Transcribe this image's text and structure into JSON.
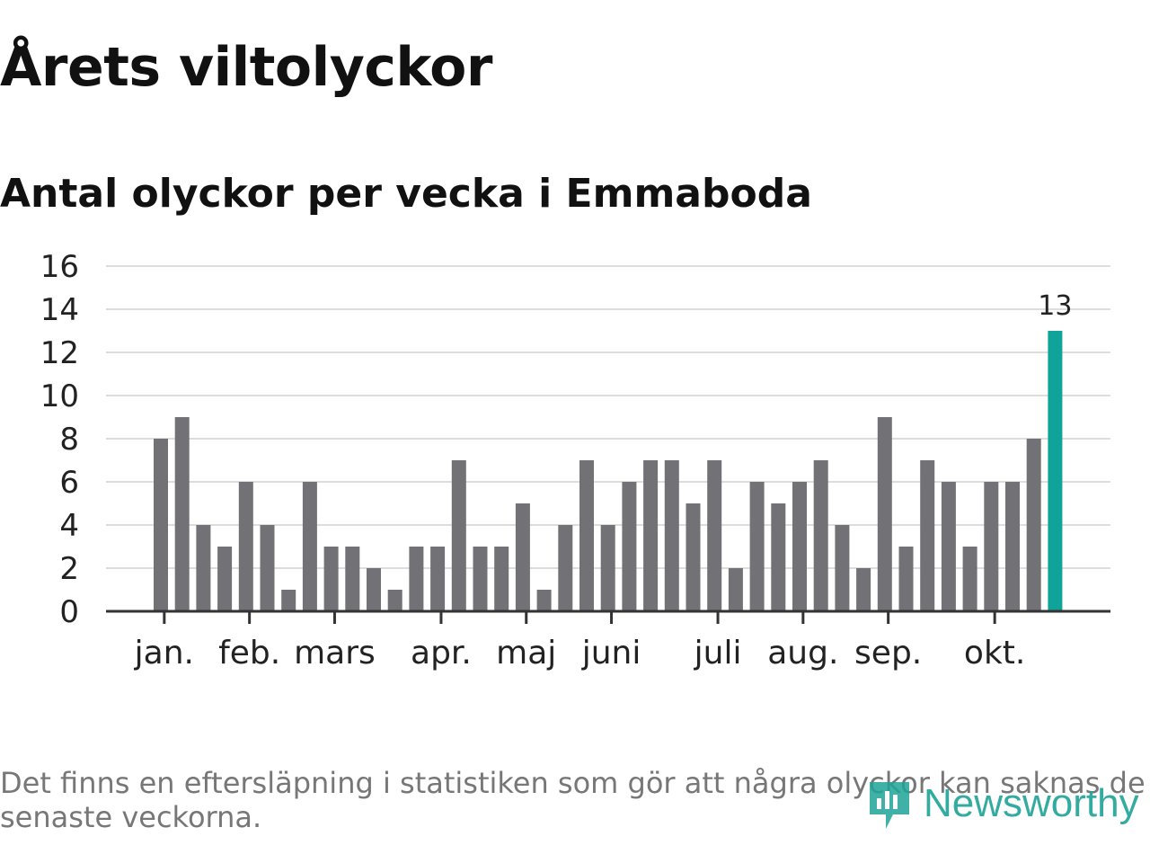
{
  "header": {
    "title": "Årets viltolyckor",
    "subtitle": "Antal olyckor per vecka i Emmaboda"
  },
  "footer": {
    "note": "Det finns en eftersläpning i statistiken som gör att några olyckor kan saknas de senaste veckorna.",
    "brand": "Newsworthy"
  },
  "colors": {
    "bar": "#727176",
    "highlight": "#0fa39a",
    "grid": "#dddddd",
    "axis": "#333333",
    "brand": "#1fa396"
  },
  "chart_data": {
    "type": "bar",
    "title": "Årets viltolyckor",
    "subtitle": "Antal olyckor per vecka i Emmaboda",
    "xlabel": "",
    "ylabel": "",
    "ylim": [
      0,
      16
    ],
    "yticks": [
      0,
      2,
      4,
      6,
      8,
      10,
      12,
      14,
      16
    ],
    "grid": true,
    "values": [
      8,
      9,
      4,
      3,
      6,
      4,
      1,
      6,
      3,
      3,
      2,
      1,
      3,
      3,
      7,
      3,
      3,
      5,
      1,
      4,
      7,
      4,
      6,
      7,
      7,
      5,
      7,
      2,
      6,
      5,
      6,
      7,
      4,
      2,
      9,
      3,
      7,
      6,
      3,
      6,
      6,
      8,
      13
    ],
    "highlight_index": 42,
    "highlight_label": "13",
    "month_ticks": [
      {
        "label": "jan.",
        "week_position": 0.5
      },
      {
        "label": "feb.",
        "week_position": 4.5
      },
      {
        "label": "mars",
        "week_position": 8.5
      },
      {
        "label": "apr.",
        "week_position": 13.5
      },
      {
        "label": "maj",
        "week_position": 17.5
      },
      {
        "label": "juni",
        "week_position": 21.5
      },
      {
        "label": "juli",
        "week_position": 26.5
      },
      {
        "label": "aug.",
        "week_position": 30.5
      },
      {
        "label": "sep.",
        "week_position": 34.5
      },
      {
        "label": "okt.",
        "week_position": 39.5
      }
    ]
  }
}
